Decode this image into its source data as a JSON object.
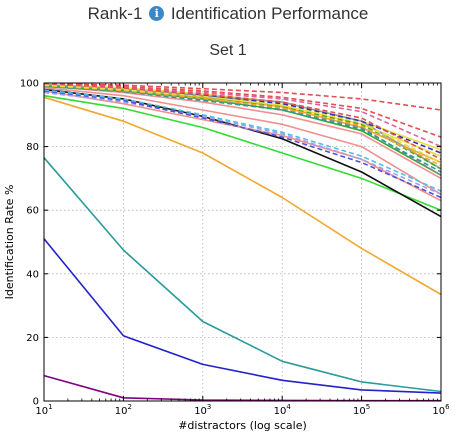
{
  "header": {
    "title_before": "Rank-1",
    "info_icon": "info-icon",
    "title_after": "Identification Performance",
    "subtitle": "Set 1"
  },
  "chart_data": {
    "type": "line",
    "title": "Rank-1 Identification Performance",
    "subtitle": "Set 1",
    "xlabel": "#distractors (log scale)",
    "ylabel": "Identification Rate %",
    "xscale": "log",
    "xlim": [
      10,
      1000000
    ],
    "ylim": [
      0,
      100
    ],
    "x": [
      10,
      100,
      1000,
      10000,
      100000,
      1000000
    ],
    "x_tick_labels": [
      {
        "base": "10",
        "exp": "1"
      },
      {
        "base": "10",
        "exp": "2"
      },
      {
        "base": "10",
        "exp": "3"
      },
      {
        "base": "10",
        "exp": "4"
      },
      {
        "base": "10",
        "exp": "5"
      },
      {
        "base": "10",
        "exp": "6"
      }
    ],
    "y_ticks": [
      0,
      20,
      40,
      60,
      80,
      100
    ],
    "grid": true,
    "series": [
      {
        "color": "#800080",
        "style": "solid",
        "values": [
          8,
          1,
          0.3,
          0.2,
          0.1,
          0.1
        ]
      },
      {
        "color": "#2222cc",
        "style": "solid",
        "values": [
          51,
          20.5,
          11.5,
          6.5,
          3.5,
          2.5
        ]
      },
      {
        "color": "#2a9a9a",
        "style": "solid",
        "values": [
          76.5,
          47.5,
          25,
          12.5,
          6,
          3
        ]
      },
      {
        "color": "#f0a830",
        "style": "solid",
        "values": [
          95.5,
          88,
          78,
          64,
          48,
          33.5
        ]
      },
      {
        "color": "#33dd33",
        "style": "solid",
        "values": [
          96,
          92,
          86,
          78,
          70,
          60
        ]
      },
      {
        "color": "#111111",
        "style": "solid",
        "values": [
          98,
          95,
          89.5,
          82.5,
          72,
          58
        ]
      },
      {
        "color": "#f09090",
        "style": "solid",
        "values": [
          97.5,
          93.5,
          88.5,
          83.5,
          76,
          63
        ]
      },
      {
        "color": "#f09090",
        "style": "solid",
        "values": [
          99,
          97,
          94,
          90,
          84,
          70
        ]
      },
      {
        "color": "#f09090",
        "style": "solid",
        "values": [
          98.5,
          96,
          91.5,
          87,
          80,
          65
        ]
      },
      {
        "color": "#e8e040",
        "style": "solid",
        "values": [
          99.5,
          98.5,
          96.5,
          94,
          88,
          79
        ]
      },
      {
        "color": "#e8e040",
        "style": "solid",
        "values": [
          99.5,
          98,
          96,
          93,
          87,
          77
        ]
      },
      {
        "color": "#f0a830",
        "style": "solid",
        "values": [
          99,
          97.5,
          95.5,
          92.5,
          86,
          75
        ]
      },
      {
        "color": "#999999",
        "style": "solid",
        "values": [
          99.5,
          98,
          96,
          94,
          88,
          73
        ]
      },
      {
        "color": "#33aa33",
        "style": "solid",
        "values": [
          99,
          97.5,
          95,
          91.5,
          85,
          71
        ]
      },
      {
        "color": "#e05050",
        "style": "dashed",
        "values": [
          99.8,
          99.3,
          98.2,
          97,
          95,
          91.5
        ]
      },
      {
        "color": "#e05050",
        "style": "dashed",
        "values": [
          99.6,
          98.8,
          97.5,
          95.5,
          92,
          83
        ]
      },
      {
        "color": "#e060a0",
        "style": "dashed",
        "values": [
          99.5,
          98.5,
          97,
          95,
          91,
          80
        ]
      },
      {
        "color": "#3030c0",
        "style": "dashed",
        "values": [
          99.3,
          98,
          96,
          93.5,
          88,
          78
        ]
      },
      {
        "color": "#e05050",
        "style": "dashed",
        "values": [
          99.4,
          98.3,
          96.5,
          94,
          89,
          76
        ]
      },
      {
        "color": "#33aa33",
        "style": "dashed",
        "values": [
          99.2,
          97.8,
          95.5,
          92.5,
          87,
          73
        ]
      },
      {
        "color": "#888888",
        "style": "dashed",
        "values": [
          99,
          97.5,
          95,
          92,
          86,
          71
        ]
      },
      {
        "color": "#2a9a9a",
        "style": "dashed",
        "values": [
          99,
          97.3,
          94.5,
          91.5,
          85.5,
          72
        ]
      },
      {
        "color": "#f0a830",
        "style": "dashed",
        "values": [
          99.2,
          97.6,
          95.2,
          92.2,
          86.5,
          74
        ]
      },
      {
        "color": "#e8e040",
        "style": "dashed",
        "values": [
          99.3,
          97.9,
          95.8,
          93,
          87.5,
          75
        ]
      },
      {
        "color": "#a0a0f0",
        "style": "dashed",
        "values": [
          97,
          94,
          89.5,
          84,
          76,
          65
        ]
      },
      {
        "color": "#5050e0",
        "style": "dashed",
        "values": [
          97.5,
          94.5,
          89,
          83,
          75,
          64
        ]
      },
      {
        "color": "#50c0e0",
        "style": "dashed",
        "values": [
          97.8,
          95,
          90,
          84.5,
          77,
          66
        ]
      }
    ]
  }
}
